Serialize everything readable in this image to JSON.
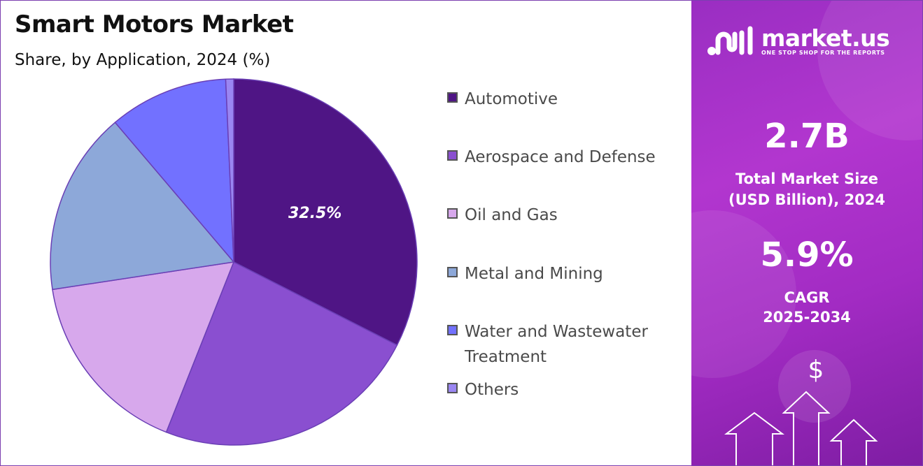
{
  "title": "Smart Motors Market",
  "subtitle": "Share, by Application, 2024 (%)",
  "chart_data": {
    "type": "pie",
    "title": "Smart Motors Market",
    "subtitle": "Share, by Application, 2024 (%)",
    "categories": [
      "Automotive",
      "Aerospace and Defense",
      "Oil and Gas",
      "Metal and Mining",
      "Water and Wastewater Treatment",
      "Others"
    ],
    "values": [
      32.5,
      23.5,
      16.6,
      16.2,
      10.5,
      0.7
    ],
    "colors": [
      "#4f1585",
      "#8a4fd0",
      "#d7a8ec",
      "#8da8d9",
      "#7271ff",
      "#9a86f2"
    ],
    "data_labels": [
      "32.5%",
      "",
      "",
      "",
      "",
      ""
    ],
    "legend_position": "right"
  },
  "legend": {
    "items": [
      {
        "label": "Automotive",
        "color": "#4f1585"
      },
      {
        "label": "Aerospace and Defense",
        "color": "#8a4fd0"
      },
      {
        "label": "Oil and Gas",
        "color": "#d7a8ec"
      },
      {
        "label": "Metal and Mining",
        "color": "#8da8d9"
      },
      {
        "label": "Water and Wastewater Treatment",
        "color": "#7271ff"
      },
      {
        "label": "Others",
        "color": "#9a86f2"
      }
    ]
  },
  "brand": {
    "name": "market.us",
    "tagline": "ONE STOP SHOP FOR THE REPORTS",
    "logo_icon": "market-us-logo-icon"
  },
  "stats": {
    "market_size_value": "2.7B",
    "market_size_label_line1": "Total Market Size",
    "market_size_label_line2": "(USD Billion), 2024",
    "cagr_value": "5.9%",
    "cagr_label_line1": "CAGR",
    "cagr_label_line2": "2025-2034"
  },
  "decor": {
    "currency_symbol": "$",
    "icons": [
      "dollar-sign-icon",
      "up-arrow-icon"
    ]
  },
  "colors": {
    "panel_gradient_start": "#9a2ec2",
    "panel_gradient_end": "#7e1da3",
    "frame_border": "#7b3fb0"
  }
}
